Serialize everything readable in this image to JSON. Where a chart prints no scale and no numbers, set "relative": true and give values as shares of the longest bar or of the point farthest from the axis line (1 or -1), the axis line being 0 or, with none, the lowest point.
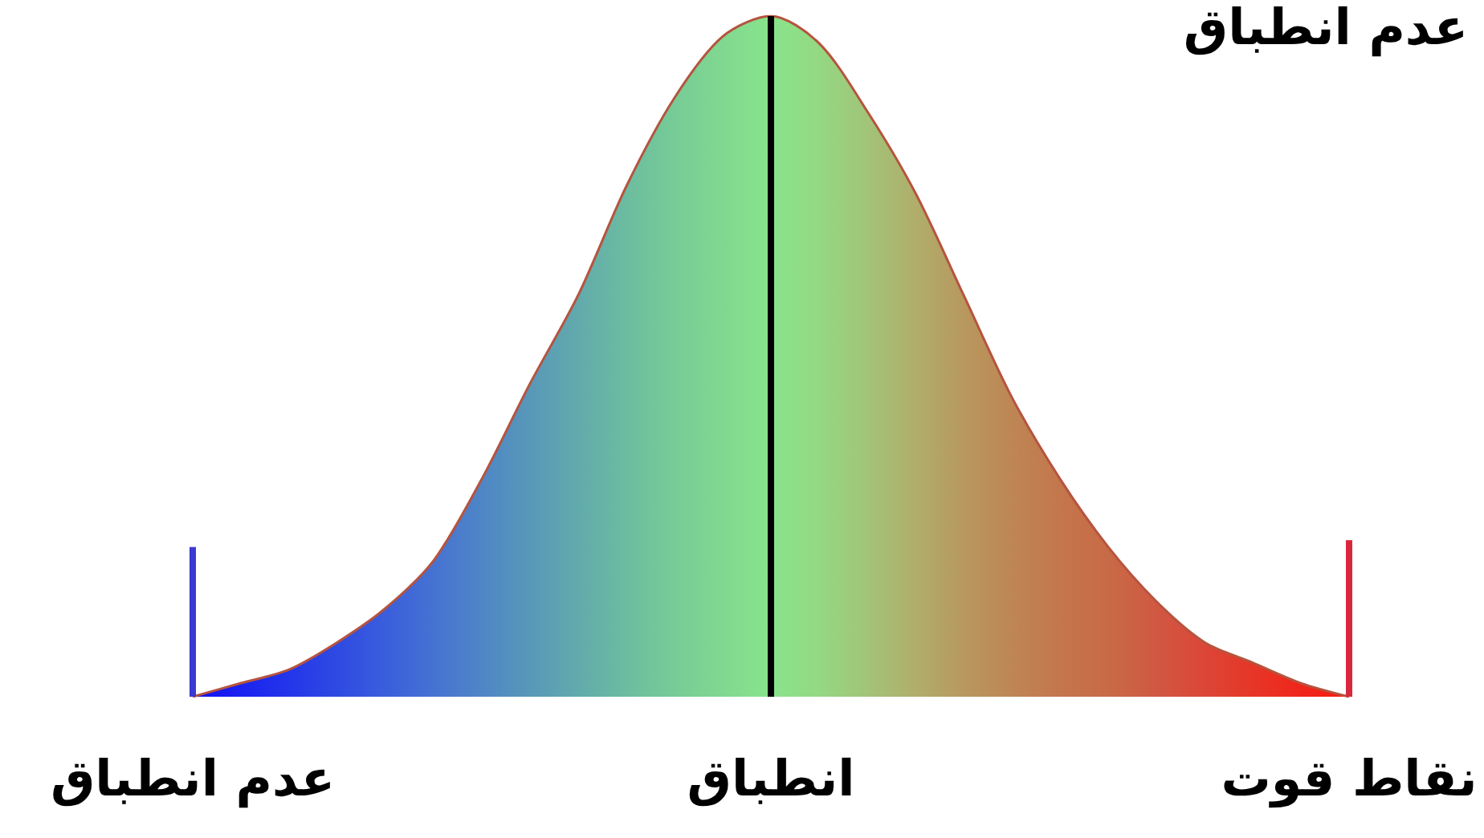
{
  "chart_data": {
    "type": "area",
    "relative": true,
    "marker": "none",
    "grid": false,
    "tick_labels": "x",
    "categories": [
      "عدم انطباق",
      null,
      null,
      null,
      null,
      null,
      null,
      null,
      null,
      null,
      null,
      null,
      "انطباق",
      null,
      null,
      null,
      null,
      null,
      null,
      null,
      null,
      null,
      null,
      null,
      "نقاط قوت"
    ],
    "annotations": [
      "عدم انطباق"
    ],
    "ref_lines": [
      {
        "axis": "x",
        "value": "انطباق",
        "color": "#000000"
      }
    ],
    "series": [
      {
        "color": "#b5543f",
        "values": [
          0,
          0.02,
          0.04,
          0.08,
          0.13,
          0.2,
          0.32,
          0.46,
          0.59,
          0.75,
          0.88,
          0.97,
          1,
          0.96,
          0.86,
          0.74,
          0.59,
          0.44,
          0.32,
          0.22,
          0.14,
          0.08,
          0.05,
          0.02,
          0
        ],
        "colors": [
          "#1212f2",
          "#1a22f0",
          "#2436ea",
          "#2e4ae2",
          "#3a5edc",
          "#4672d2",
          "#4e86c6",
          "#5898b8",
          "#62aaac",
          "#6cbca0",
          "#76cc96",
          "#80d890",
          "#88e48c",
          "#94d882",
          "#a2c478",
          "#b0ae6a",
          "#b8985e",
          "#be8654",
          "#c4764c",
          "#c86a46",
          "#d05842",
          "#dc4636",
          "#e63628",
          "#f0261a",
          "#f81a12"
        ]
      },
      {
        "type": "line",
        "color": "#3a3ad2",
        "x": [
          "عدم انطباق",
          "عدم انطباق"
        ],
        "values": [
          0,
          0.22
        ]
      },
      {
        "type": "line",
        "color": "#d8283c",
        "x": [
          "نقاط قوت",
          "نقاط قوت"
        ],
        "values": [
          0,
          0.23
        ]
      }
    ]
  }
}
